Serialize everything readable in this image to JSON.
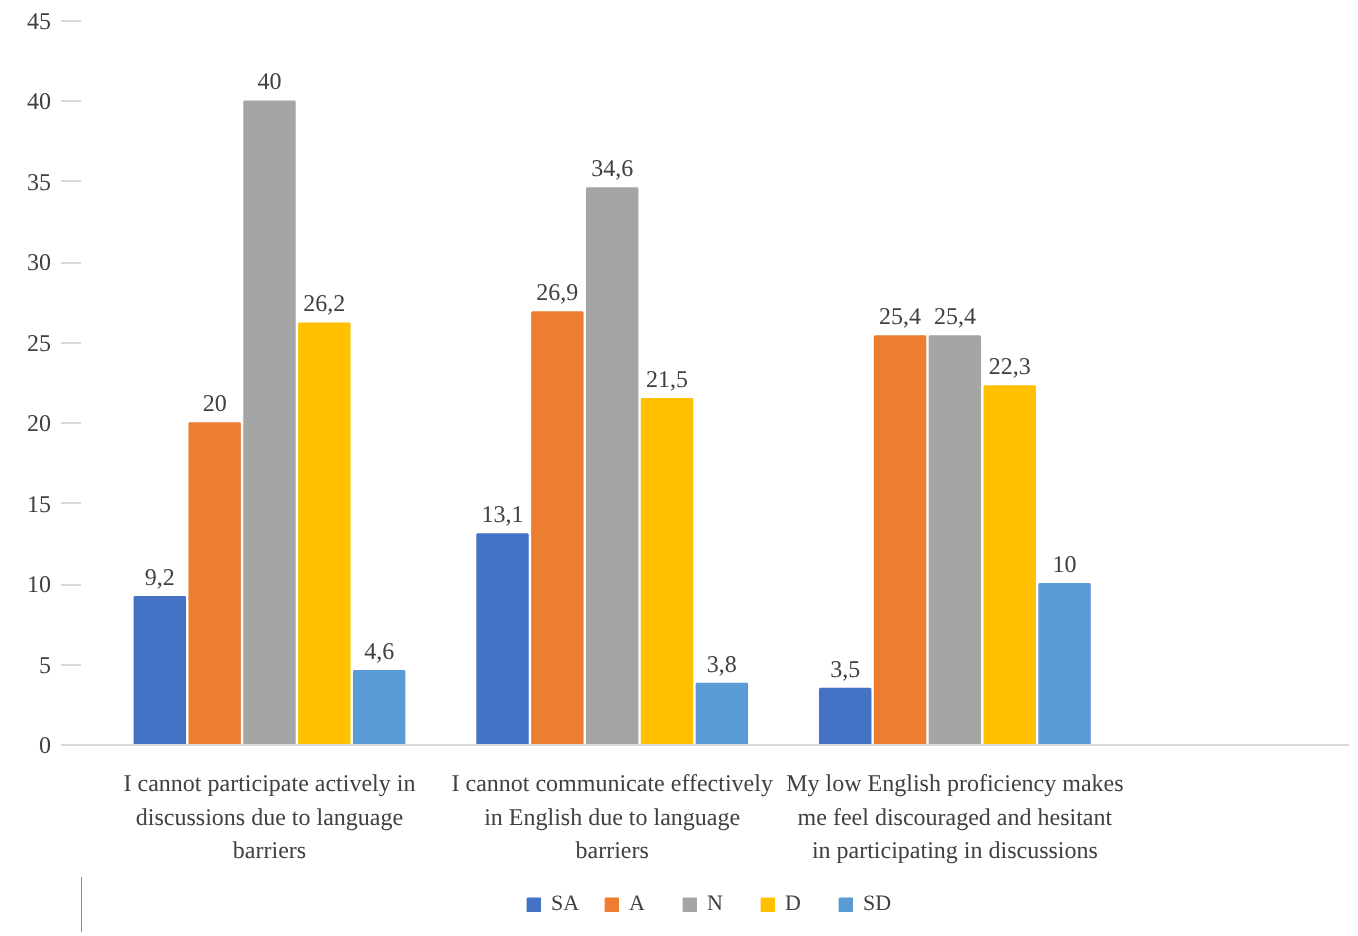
{
  "chart_data": {
    "type": "bar",
    "categories": [
      "I cannot participate actively in discussions due to language barriers",
      "I cannot communicate effectively in English due to language barriers",
      "My low English proficiency makes me feel discouraged and hesitant in participating in discussions"
    ],
    "series": [
      {
        "name": "SA",
        "color": "#4472c4",
        "values": [
          9.2,
          13.1,
          3.5
        ],
        "value_labels": [
          "9,2",
          "13,1",
          "3,5"
        ]
      },
      {
        "name": "A",
        "color": "#ed7d31",
        "values": [
          20,
          26.9,
          25.4
        ],
        "value_labels": [
          "20",
          "26,9",
          "25,4"
        ]
      },
      {
        "name": "N",
        "color": "#a5a5a5",
        "values": [
          40,
          34.6,
          25.4
        ],
        "value_labels": [
          "40",
          "34,6",
          "25,4"
        ]
      },
      {
        "name": "D",
        "color": "#ffc000",
        "values": [
          26.2,
          21.5,
          22.3
        ],
        "value_labels": [
          "26,2",
          "21,5",
          "22,3"
        ]
      },
      {
        "name": "SD",
        "color": "#5b9bd5",
        "values": [
          4.6,
          3.8,
          10
        ],
        "value_labels": [
          "4,6",
          "3,8",
          "10"
        ]
      }
    ],
    "ylim": [
      0,
      45
    ],
    "yticks": [
      0,
      5,
      10,
      15,
      20,
      25,
      30,
      35,
      40,
      45
    ],
    "grid": false,
    "legend": "bottom"
  }
}
